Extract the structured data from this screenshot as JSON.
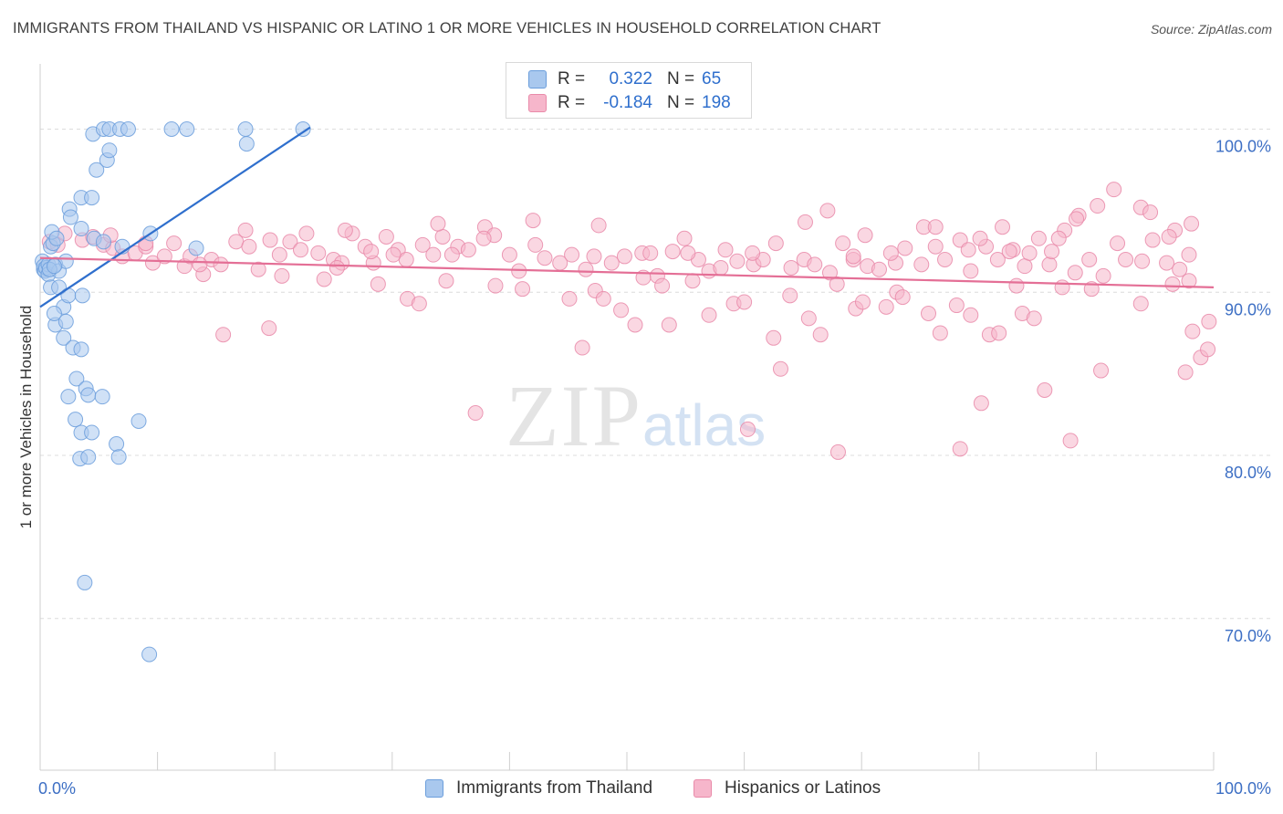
{
  "title": "IMMIGRANTS FROM THAILAND VS HISPANIC OR LATINO 1 OR MORE VEHICLES IN HOUSEHOLD CORRELATION CHART",
  "source": "Source: ZipAtlas.com",
  "watermark": {
    "zip": "ZIP",
    "atlas": "atlas"
  },
  "legend": {
    "blue": {
      "r_label": "R =",
      "r_value": "0.322",
      "n_label": "N =",
      "n_value": "65"
    },
    "pink": {
      "r_label": "R =",
      "r_value": "-0.184",
      "n_label": "N =",
      "n_value": "198"
    }
  },
  "bottom_legend": {
    "blue": "Immigrants from Thailand",
    "pink": "Hispanics or Latinos"
  },
  "colors": {
    "blue_fill": "#a9c8ee",
    "blue_stroke": "#6b9edc",
    "blue_line": "#2f6fcd",
    "pink_fill": "#f6b6cb",
    "pink_stroke": "#e98aa9",
    "pink_line": "#e46f96",
    "axis_text": "#3d6fc4",
    "grid": "#dcdcdc"
  },
  "chart_data": {
    "type": "scatter",
    "title": "IMMIGRANTS FROM THAILAND VS HISPANIC OR LATINO 1 OR MORE VEHICLES IN HOUSEHOLD CORRELATION CHART",
    "xlabel": "",
    "ylabel": "1 or more Vehicles in Household",
    "xlim": [
      0,
      100
    ],
    "ylim": [
      60.7,
      104
    ],
    "x_tick_labels": [
      {
        "value": 0,
        "label": "0.0%"
      },
      {
        "value": 100,
        "label": "100.0%"
      }
    ],
    "y_ticks": [
      {
        "value": 100,
        "label": "100.0%"
      },
      {
        "value": 90,
        "label": "90.0%"
      },
      {
        "value": 80,
        "label": "80.0%"
      },
      {
        "value": 70,
        "label": "70.0%"
      }
    ],
    "series": [
      {
        "name": "Immigrants from Thailand",
        "color": "blue",
        "r": 0.322,
        "n": 65,
        "trend": {
          "x": [
            0,
            23
          ],
          "y": [
            89.1,
            100.1
          ]
        },
        "points": [
          [
            0.2,
            91.9
          ],
          [
            0.3,
            91.4
          ],
          [
            0.3,
            91.6
          ],
          [
            0.4,
            91.3
          ],
          [
            0.5,
            91.5
          ],
          [
            0.7,
            91.7
          ],
          [
            0.7,
            91.1
          ],
          [
            0.9,
            92.8
          ],
          [
            1.1,
            93.0
          ],
          [
            1.0,
            93.7
          ],
          [
            1.4,
            93.3
          ],
          [
            1.3,
            91.7
          ],
          [
            1.6,
            91.3
          ],
          [
            2.2,
            91.9
          ],
          [
            0.8,
            91.4
          ],
          [
            1.2,
            91.6
          ],
          [
            0.9,
            90.3
          ],
          [
            1.6,
            90.3
          ],
          [
            2.0,
            89.1
          ],
          [
            2.4,
            89.8
          ],
          [
            3.6,
            89.8
          ],
          [
            1.3,
            88.0
          ],
          [
            1.2,
            88.7
          ],
          [
            2.2,
            88.2
          ],
          [
            2.0,
            87.2
          ],
          [
            2.8,
            86.6
          ],
          [
            3.5,
            86.5
          ],
          [
            3.1,
            84.7
          ],
          [
            3.9,
            84.1
          ],
          [
            2.4,
            83.6
          ],
          [
            4.1,
            83.7
          ],
          [
            5.3,
            83.6
          ],
          [
            3.0,
            82.2
          ],
          [
            3.5,
            81.4
          ],
          [
            4.4,
            81.4
          ],
          [
            6.5,
            80.7
          ],
          [
            3.4,
            79.8
          ],
          [
            4.1,
            79.9
          ],
          [
            6.7,
            79.9
          ],
          [
            8.4,
            82.1
          ],
          [
            3.8,
            72.2
          ],
          [
            9.3,
            67.8
          ],
          [
            3.5,
            95.8
          ],
          [
            4.4,
            95.8
          ],
          [
            2.5,
            95.1
          ],
          [
            2.6,
            94.6
          ],
          [
            3.5,
            93.9
          ],
          [
            4.6,
            93.3
          ],
          [
            5.4,
            93.1
          ],
          [
            7.0,
            92.8
          ],
          [
            9.4,
            93.6
          ],
          [
            13.3,
            92.7
          ],
          [
            4.8,
            97.5
          ],
          [
            5.7,
            98.1
          ],
          [
            5.9,
            98.7
          ],
          [
            4.5,
            99.7
          ],
          [
            5.4,
            100.0
          ],
          [
            5.9,
            100.0
          ],
          [
            6.8,
            100.0
          ],
          [
            7.5,
            100.0
          ],
          [
            11.2,
            100.0
          ],
          [
            12.5,
            100.0
          ],
          [
            17.5,
            100.0
          ],
          [
            17.6,
            99.1
          ],
          [
            22.4,
            100.0
          ]
        ]
      },
      {
        "name": "Hispanics or Latinos",
        "color": "pink",
        "r": -0.184,
        "n": 198,
        "trend": {
          "x": [
            0,
            100
          ],
          "y": [
            92.1,
            90.3
          ]
        },
        "points": [
          [
            0.8,
            93.1
          ],
          [
            1.5,
            92.9
          ],
          [
            2.1,
            93.6
          ],
          [
            3.6,
            93.2
          ],
          [
            4.5,
            93.4
          ],
          [
            5.4,
            92.9
          ],
          [
            6.2,
            92.7
          ],
          [
            7.0,
            92.2
          ],
          [
            8.1,
            92.4
          ],
          [
            9.0,
            92.8
          ],
          [
            9.6,
            91.8
          ],
          [
            10.6,
            92.2
          ],
          [
            11.4,
            93.0
          ],
          [
            12.3,
            91.6
          ],
          [
            13.9,
            91.1
          ],
          [
            14.6,
            92.0
          ],
          [
            15.4,
            91.7
          ],
          [
            16.7,
            93.1
          ],
          [
            17.8,
            92.8
          ],
          [
            18.6,
            91.4
          ],
          [
            19.6,
            93.2
          ],
          [
            20.4,
            92.3
          ],
          [
            21.3,
            93.1
          ],
          [
            22.7,
            93.6
          ],
          [
            23.7,
            92.4
          ],
          [
            25.0,
            92.0
          ],
          [
            25.7,
            91.8
          ],
          [
            26.6,
            93.6
          ],
          [
            27.7,
            92.8
          ],
          [
            28.4,
            91.8
          ],
          [
            29.5,
            93.4
          ],
          [
            30.5,
            92.6
          ],
          [
            31.2,
            92.0
          ],
          [
            32.6,
            92.9
          ],
          [
            33.5,
            92.3
          ],
          [
            34.3,
            93.4
          ],
          [
            35.6,
            92.8
          ],
          [
            36.5,
            92.6
          ],
          [
            37.9,
            94.0
          ],
          [
            38.7,
            93.5
          ],
          [
            40.0,
            92.3
          ],
          [
            40.8,
            91.3
          ],
          [
            42.2,
            92.9
          ],
          [
            43.0,
            92.1
          ],
          [
            44.3,
            91.8
          ],
          [
            45.3,
            92.3
          ],
          [
            46.5,
            91.4
          ],
          [
            47.6,
            94.1
          ],
          [
            48.7,
            91.8
          ],
          [
            49.8,
            92.2
          ],
          [
            51.3,
            92.4
          ],
          [
            52.6,
            91.0
          ],
          [
            53.9,
            92.5
          ],
          [
            54.9,
            93.3
          ],
          [
            56.1,
            92.0
          ],
          [
            57.0,
            91.3
          ],
          [
            58.4,
            92.6
          ],
          [
            59.4,
            91.9
          ],
          [
            60.8,
            91.7
          ],
          [
            61.6,
            92.0
          ],
          [
            62.7,
            93.0
          ],
          [
            64.0,
            91.5
          ],
          [
            65.1,
            92.0
          ],
          [
            66.0,
            91.7
          ],
          [
            67.3,
            91.2
          ],
          [
            68.4,
            93.0
          ],
          [
            69.3,
            92.0
          ],
          [
            70.5,
            91.6
          ],
          [
            71.5,
            91.4
          ],
          [
            72.9,
            91.8
          ],
          [
            73.7,
            92.7
          ],
          [
            75.1,
            91.7
          ],
          [
            76.3,
            92.8
          ],
          [
            77.1,
            92.0
          ],
          [
            78.4,
            93.2
          ],
          [
            79.3,
            91.3
          ],
          [
            80.6,
            92.8
          ],
          [
            81.6,
            92.0
          ],
          [
            82.9,
            92.6
          ],
          [
            83.9,
            91.6
          ],
          [
            85.1,
            93.3
          ],
          [
            86.0,
            91.7
          ],
          [
            87.3,
            93.8
          ],
          [
            88.2,
            91.2
          ],
          [
            89.4,
            92.0
          ],
          [
            90.6,
            91.0
          ],
          [
            91.8,
            93.0
          ],
          [
            92.5,
            92.0
          ],
          [
            93.9,
            91.9
          ],
          [
            94.8,
            93.2
          ],
          [
            96.0,
            91.8
          ],
          [
            97.1,
            91.4
          ],
          [
            97.9,
            92.3
          ],
          [
            15.6,
            87.4
          ],
          [
            19.5,
            87.8
          ],
          [
            20.6,
            91.0
          ],
          [
            24.2,
            90.8
          ],
          [
            25.3,
            91.5
          ],
          [
            28.8,
            90.5
          ],
          [
            31.3,
            89.6
          ],
          [
            32.3,
            89.3
          ],
          [
            34.6,
            90.7
          ],
          [
            37.1,
            82.6
          ],
          [
            38.8,
            90.4
          ],
          [
            41.1,
            90.2
          ],
          [
            45.1,
            89.6
          ],
          [
            46.2,
            86.6
          ],
          [
            47.3,
            90.1
          ],
          [
            48.0,
            89.6
          ],
          [
            49.5,
            88.9
          ],
          [
            50.7,
            88.0
          ],
          [
            51.4,
            90.9
          ],
          [
            53.0,
            90.4
          ],
          [
            53.6,
            88.0
          ],
          [
            55.6,
            90.7
          ],
          [
            57.0,
            88.6
          ],
          [
            59.1,
            89.3
          ],
          [
            60.0,
            89.4
          ],
          [
            60.3,
            81.6
          ],
          [
            62.5,
            87.2
          ],
          [
            63.1,
            85.3
          ],
          [
            63.9,
            89.8
          ],
          [
            65.5,
            88.4
          ],
          [
            66.5,
            87.4
          ],
          [
            67.9,
            90.5
          ],
          [
            68.0,
            80.2
          ],
          [
            69.5,
            89.0
          ],
          [
            70.1,
            89.4
          ],
          [
            72.1,
            89.1
          ],
          [
            73.0,
            90.0
          ],
          [
            73.5,
            89.7
          ],
          [
            75.7,
            88.7
          ],
          [
            76.7,
            87.5
          ],
          [
            78.1,
            89.2
          ],
          [
            78.4,
            80.4
          ],
          [
            79.3,
            88.6
          ],
          [
            80.2,
            83.2
          ],
          [
            80.9,
            87.4
          ],
          [
            81.7,
            87.5
          ],
          [
            83.2,
            90.4
          ],
          [
            83.7,
            88.7
          ],
          [
            84.7,
            88.4
          ],
          [
            85.6,
            84.0
          ],
          [
            87.1,
            90.3
          ],
          [
            87.8,
            80.9
          ],
          [
            89.6,
            90.2
          ],
          [
            90.4,
            85.2
          ],
          [
            93.8,
            89.3
          ],
          [
            96.5,
            90.5
          ],
          [
            97.6,
            85.1
          ],
          [
            98.2,
            87.6
          ],
          [
            98.9,
            86.0
          ],
          [
            99.5,
            86.5
          ],
          [
            99.6,
            88.2
          ],
          [
            97.9,
            90.7
          ],
          [
            6.0,
            93.5
          ],
          [
            9.0,
            93.0
          ],
          [
            12.8,
            92.2
          ],
          [
            13.6,
            91.7
          ],
          [
            17.5,
            93.8
          ],
          [
            22.2,
            92.6
          ],
          [
            26.0,
            93.8
          ],
          [
            28.2,
            92.5
          ],
          [
            30.1,
            92.3
          ],
          [
            33.9,
            94.2
          ],
          [
            35.1,
            92.3
          ],
          [
            37.8,
            93.3
          ],
          [
            42.0,
            94.4
          ],
          [
            47.2,
            92.2
          ],
          [
            52.0,
            92.4
          ],
          [
            55.2,
            92.4
          ],
          [
            58.0,
            91.5
          ],
          [
            60.7,
            92.4
          ],
          [
            65.2,
            94.3
          ],
          [
            67.1,
            95.0
          ],
          [
            69.3,
            92.2
          ],
          [
            70.3,
            93.5
          ],
          [
            72.5,
            92.4
          ],
          [
            75.3,
            94.0
          ],
          [
            80.1,
            93.3
          ],
          [
            82.0,
            94.0
          ],
          [
            84.3,
            92.4
          ],
          [
            86.8,
            93.3
          ],
          [
            88.5,
            94.7
          ],
          [
            90.1,
            95.3
          ],
          [
            93.8,
            95.2
          ],
          [
            96.7,
            93.8
          ],
          [
            98.1,
            94.2
          ],
          [
            94.6,
            94.9
          ],
          [
            91.5,
            96.3
          ],
          [
            96.2,
            93.4
          ],
          [
            88.3,
            94.5
          ],
          [
            86.2,
            92.5
          ],
          [
            82.6,
            92.5
          ],
          [
            79.1,
            92.6
          ],
          [
            76.3,
            94.0
          ]
        ]
      }
    ]
  }
}
